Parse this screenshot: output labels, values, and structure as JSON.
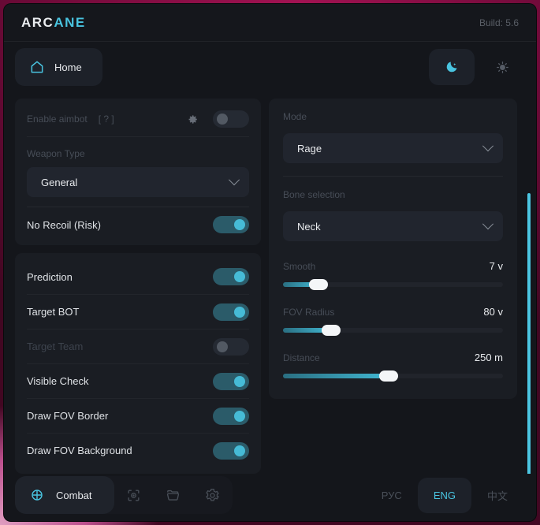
{
  "app": {
    "title_primary": "ARC",
    "title_accent": "ANE",
    "build": "Build: 5.6"
  },
  "colors": {
    "accent": "#49c4e0",
    "toggle_track_on": "#2b5b69",
    "toggle_knob_on": "#46bbd6",
    "background_pink": "#bc4f8d",
    "card_bg": "#1a1d23"
  },
  "nav": {
    "home_label": "Home",
    "home_icon": "home-icon",
    "theme": {
      "moon_icon": "moon-icon",
      "sun_icon": "sun-icon",
      "active": "dark"
    }
  },
  "aimbot_card": {
    "enable_label": "Enable aimbot",
    "help_text": "[ ? ]",
    "enable_state": "disabled",
    "gear_icon": "gear-icon",
    "weapon_type_label": "Weapon Type",
    "weapon_type_value": "General",
    "no_recoil_label": "No Recoil (Risk)",
    "no_recoil_state": "on"
  },
  "toggles_card": {
    "items": [
      {
        "label": "Prediction",
        "state": "on"
      },
      {
        "label": "Target BOT",
        "state": "on"
      },
      {
        "label": "Target Team",
        "state": "disabled"
      },
      {
        "label": "Visible Check",
        "state": "on"
      },
      {
        "label": "Draw FOV Border",
        "state": "on"
      },
      {
        "label": "Draw FOV Background",
        "state": "on"
      }
    ]
  },
  "settings_card": {
    "mode_label": "Mode",
    "mode_value": "Rage",
    "bone_label": "Bone selection",
    "bone_value": "Neck",
    "sliders": [
      {
        "label": "Smooth",
        "value": "7 v",
        "percent": "16%"
      },
      {
        "label": "FOV Radius",
        "value": "80 v",
        "percent": "22%"
      },
      {
        "label": "Distance",
        "value": "250 m",
        "percent": "48%"
      }
    ]
  },
  "footer": {
    "combat_label": "Combat",
    "combat_icon": "crosshair-icon",
    "tool_icons": [
      "esp-eye-icon",
      "folder-icon",
      "settings-gear-icon"
    ],
    "languages": [
      {
        "label": "РУС",
        "active": "false"
      },
      {
        "label": "ENG",
        "active": "true"
      },
      {
        "label": "中文",
        "active": "false"
      }
    ]
  }
}
